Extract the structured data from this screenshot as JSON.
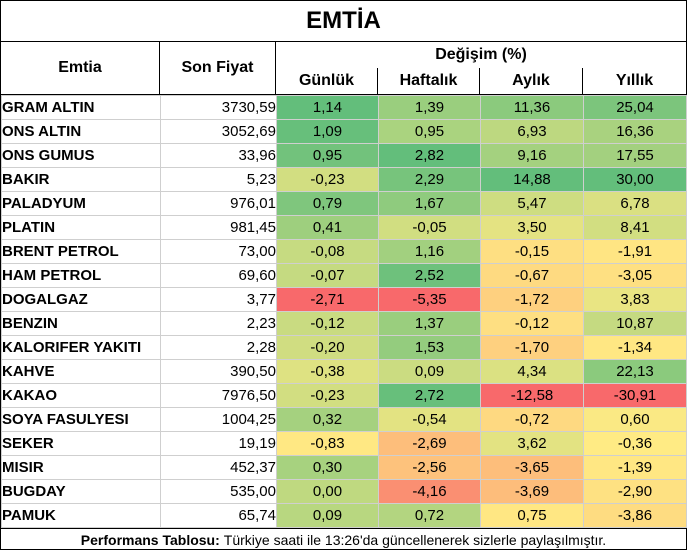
{
  "title": "EMTİA",
  "headers": {
    "commodity": "Emtia",
    "price": "Son Fiyat",
    "change_group": "Değişim (%)",
    "daily": "Günlük",
    "weekly": "Haftalık",
    "monthly": "Aylık",
    "yearly": "Yıllık"
  },
  "colors": {
    "strong_green": "#63be7b",
    "light_green": "#b5d87f",
    "yellow": "#f6e884",
    "orange": "#fcae74",
    "red": "#f8696b"
  },
  "rows": [
    {
      "name": "GRAM ALTIN",
      "price": "3730,59",
      "daily": "1,14",
      "weekly": "1,39",
      "monthly": "11,36",
      "yearly": "25,04"
    },
    {
      "name": "ONS ALTIN",
      "price": "3052,69",
      "daily": "1,09",
      "weekly": "0,95",
      "monthly": "6,93",
      "yearly": "16,36"
    },
    {
      "name": "ONS GUMUS",
      "price": "33,96",
      "daily": "0,95",
      "weekly": "2,82",
      "monthly": "9,16",
      "yearly": "17,55"
    },
    {
      "name": "BAKIR",
      "price": "5,23",
      "daily": "-0,23",
      "weekly": "2,29",
      "monthly": "14,88",
      "yearly": "30,00"
    },
    {
      "name": "PALADYUM",
      "price": "976,01",
      "daily": "0,79",
      "weekly": "1,67",
      "monthly": "5,47",
      "yearly": "6,78"
    },
    {
      "name": "PLATIN",
      "price": "981,45",
      "daily": "0,41",
      "weekly": "-0,05",
      "monthly": "3,50",
      "yearly": "8,41"
    },
    {
      "name": "BRENT PETROL",
      "price": "73,00",
      "daily": "-0,08",
      "weekly": "1,16",
      "monthly": "-0,15",
      "yearly": "-1,91"
    },
    {
      "name": "HAM PETROL",
      "price": "69,60",
      "daily": "-0,07",
      "weekly": "2,52",
      "monthly": "-0,67",
      "yearly": "-3,05"
    },
    {
      "name": "DOGALGAZ",
      "price": "3,77",
      "daily": "-2,71",
      "weekly": "-5,35",
      "monthly": "-1,72",
      "yearly": "3,83"
    },
    {
      "name": "BENZIN",
      "price": "2,23",
      "daily": "-0,12",
      "weekly": "1,37",
      "monthly": "-0,12",
      "yearly": "10,87"
    },
    {
      "name": "KALORIFER YAKITI",
      "price": "2,28",
      "daily": "-0,20",
      "weekly": "1,53",
      "monthly": "-1,70",
      "yearly": "-1,34"
    },
    {
      "name": "KAHVE",
      "price": "390,50",
      "daily": "-0,38",
      "weekly": "0,09",
      "monthly": "4,34",
      "yearly": "22,13"
    },
    {
      "name": "KAKAO",
      "price": "7976,50",
      "daily": "-0,23",
      "weekly": "2,72",
      "monthly": "-12,58",
      "yearly": "-30,91"
    },
    {
      "name": "SOYA FASULYESI",
      "price": "1004,25",
      "daily": "0,32",
      "weekly": "-0,54",
      "monthly": "-0,72",
      "yearly": "0,60"
    },
    {
      "name": "SEKER",
      "price": "19,19",
      "daily": "-0,83",
      "weekly": "-2,69",
      "monthly": "3,62",
      "yearly": "-0,36"
    },
    {
      "name": "MISIR",
      "price": "452,37",
      "daily": "0,30",
      "weekly": "-2,56",
      "monthly": "-3,65",
      "yearly": "-1,39"
    },
    {
      "name": "BUGDAY",
      "price": "535,00",
      "daily": "0,00",
      "weekly": "-4,16",
      "monthly": "-3,69",
      "yearly": "-2,90"
    },
    {
      "name": "PAMUK",
      "price": "65,74",
      "daily": "0,09",
      "weekly": "0,72",
      "monthly": "0,75",
      "yearly": "-3,86"
    }
  ],
  "footer": {
    "label": "Performans Tablosu:",
    "text": "Türkiye saati ile 13:26'da güncellenerek sizlerle paylaşılmıştır."
  }
}
